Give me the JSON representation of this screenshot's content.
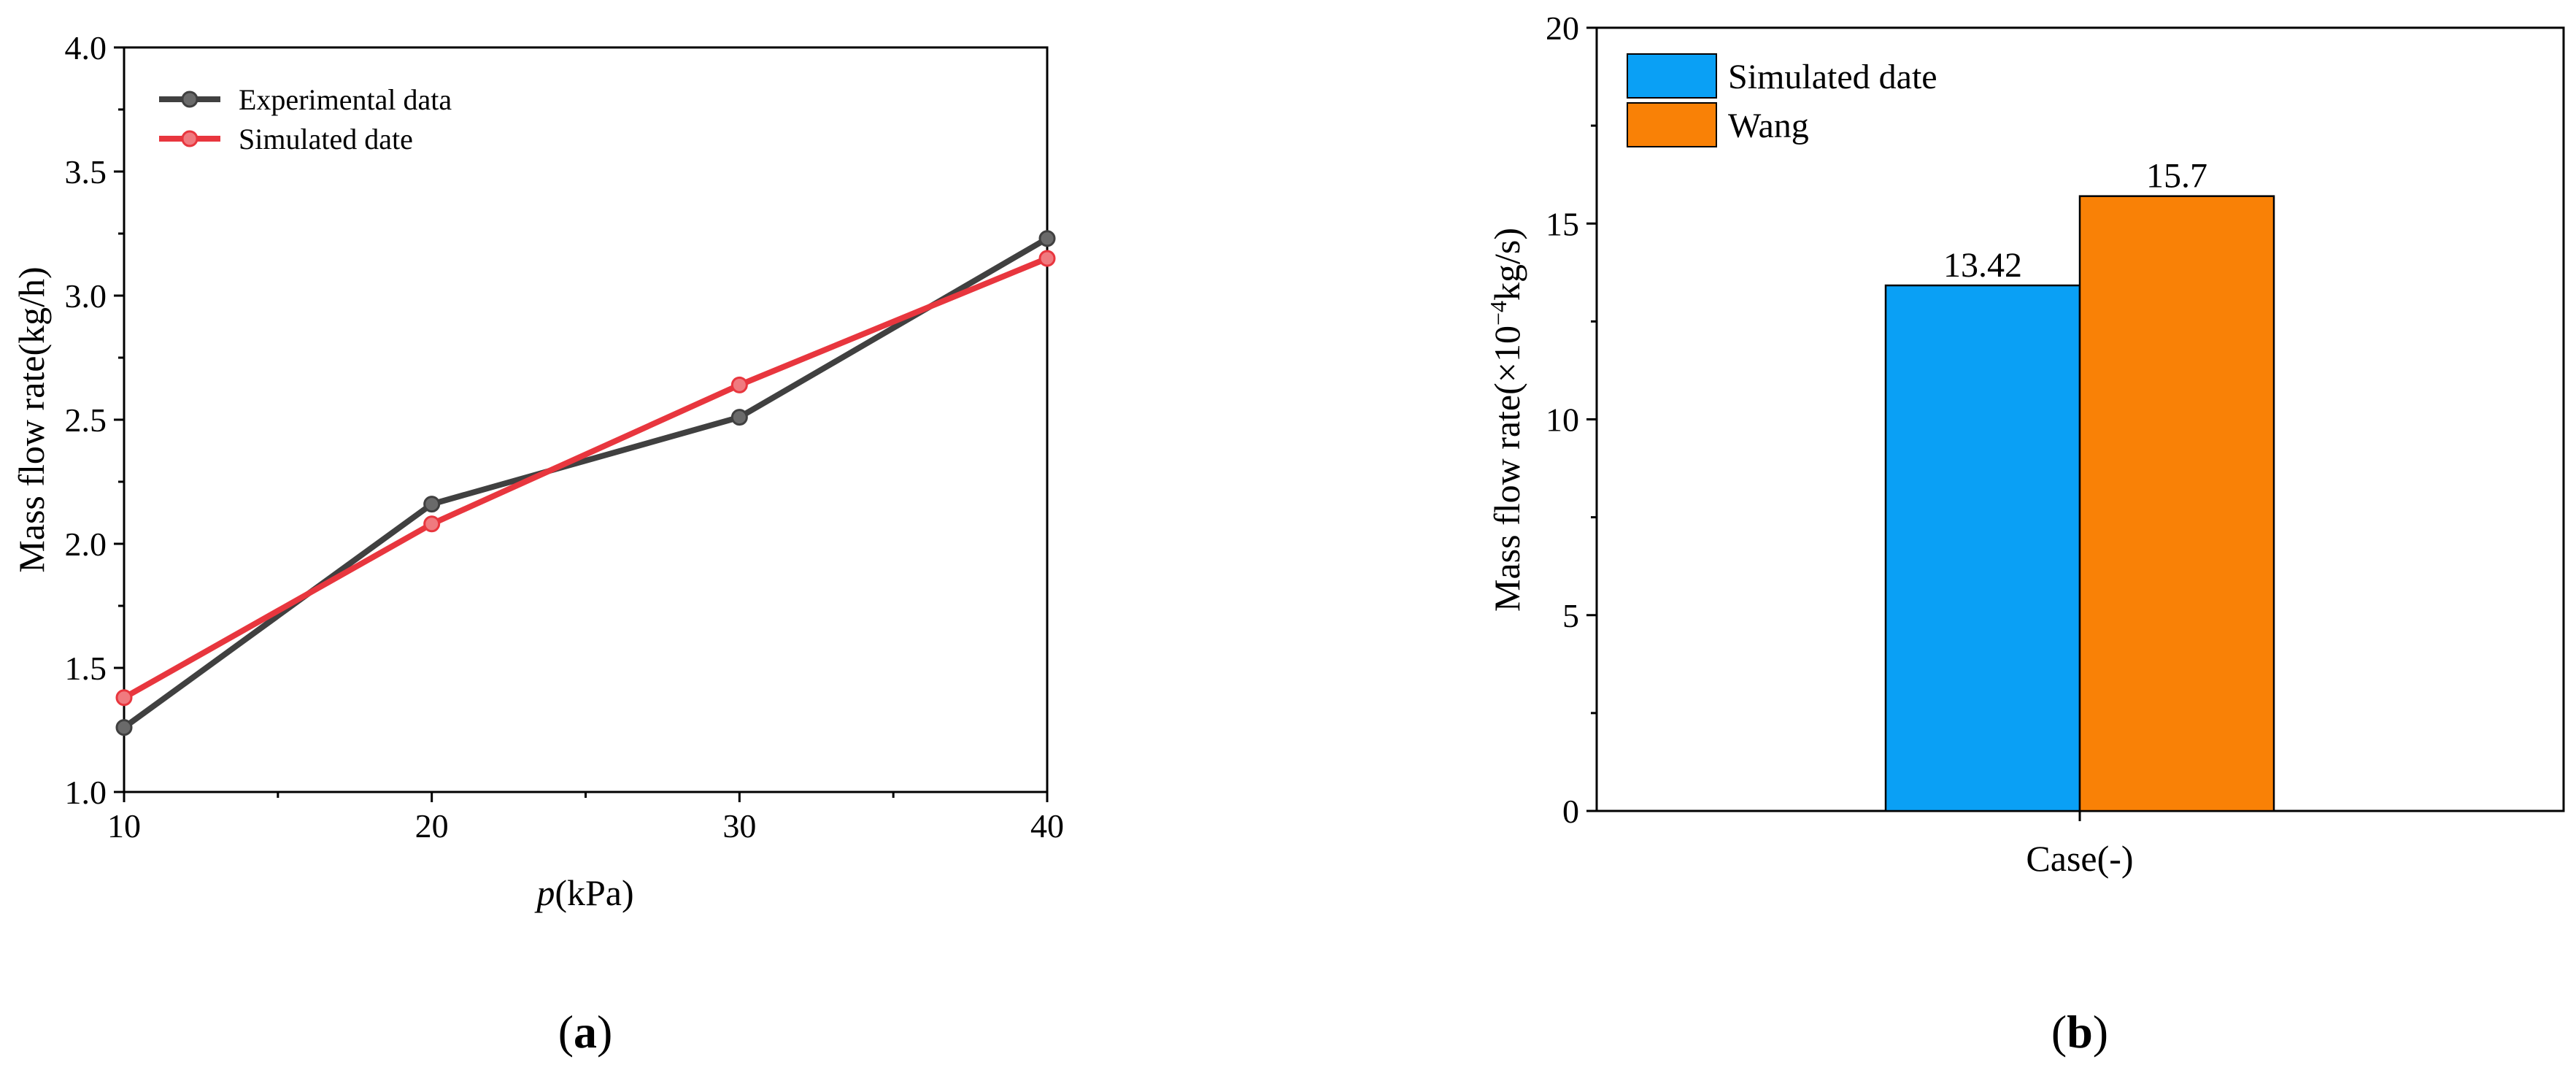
{
  "panel_labels": {
    "a": "a",
    "b": "b"
  },
  "chart_data": [
    {
      "type": "line",
      "panel": "a",
      "x": [
        10,
        20,
        30,
        40
      ],
      "series": [
        {
          "name": "Experimental data",
          "values": [
            1.26,
            2.16,
            2.51,
            3.23
          ],
          "color": "#404040"
        },
        {
          "name": "Simulated date",
          "values": [
            1.38,
            2.08,
            2.64,
            3.15
          ],
          "color": "#e8363e"
        }
      ],
      "xlabel_italic": "p",
      "xlabel_rest": "(kPa)",
      "ylabel": "Mass flow rate(kg/h)",
      "xlim": [
        10,
        40
      ],
      "ylim": [
        1.0,
        4.0
      ],
      "xticks": [
        "10",
        "20",
        "30",
        "40"
      ],
      "yticks": [
        "1.0",
        "1.5",
        "2.0",
        "2.5",
        "3.0",
        "3.5",
        "4.0"
      ],
      "legend_position": "top-left",
      "grid": false
    },
    {
      "type": "bar",
      "panel": "b",
      "categories": [
        ""
      ],
      "series": [
        {
          "name": "Simulated date",
          "values": [
            13.42
          ],
          "label": "13.42",
          "color": "#0aa0f5"
        },
        {
          "name": "Wang",
          "values": [
            15.7
          ],
          "label": "15.7",
          "color": "#f98106"
        }
      ],
      "xlabel": "Case(-)",
      "ylabel_pre": "Mass flow rate(×10",
      "ylabel_sup": "−4",
      "ylabel_post": "kg/s)",
      "ylim": [
        0,
        20
      ],
      "yticks": [
        "0",
        "5",
        "10",
        "15",
        "20"
      ],
      "legend_position": "top-left",
      "grid": false
    }
  ]
}
